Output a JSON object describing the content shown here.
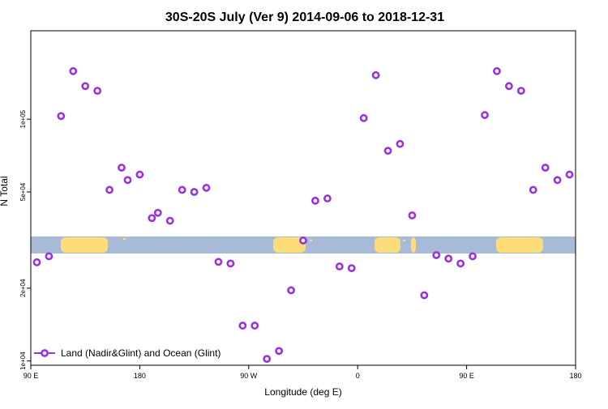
{
  "chart_data": {
    "type": "scatter",
    "title": "30S-20S July (Ver 9)   2014-09-06 to 2018-12-31",
    "xlabel": "Longitude (deg E)",
    "ylabel": "N Total",
    "x_ticks": [
      {
        "value": 0,
        "label": "90 E"
      },
      {
        "value": 90,
        "label": "180"
      },
      {
        "value": 180,
        "label": "90 W"
      },
      {
        "value": 270,
        "label": "0"
      },
      {
        "value": 360,
        "label": "90 E"
      },
      {
        "value": 450,
        "label": "180"
      }
    ],
    "xlim": [
      0,
      450
    ],
    "y_scale": "log",
    "ylim": [
      9600,
      232000
    ],
    "y_ticks": [
      {
        "value": 10000,
        "label": "1e+04"
      },
      {
        "value": 20000,
        "label": "2e+04"
      },
      {
        "value": 50000,
        "label": "5e+04"
      },
      {
        "value": 100000,
        "label": "1e+05"
      }
    ],
    "grid": false,
    "legend": {
      "position": "bottom-left",
      "entries": [
        {
          "label": "Land (Nadir&Glint) and Ocean (Glint)",
          "color": "#9b30e0"
        }
      ]
    },
    "colors": {
      "marker": "#9b30e0",
      "ocean": "#a7bbd8",
      "land": "#fedc7a"
    },
    "series": [
      {
        "name": "Land (Nadir&Glint) and Ocean (Glint)",
        "x": [
          5,
          15,
          25,
          35,
          45,
          55,
          65,
          75,
          80,
          90,
          100,
          105,
          115,
          125,
          135,
          145,
          155,
          165,
          175,
          185,
          195,
          205,
          215,
          225,
          235,
          245,
          255,
          265,
          275,
          285,
          295,
          305,
          315,
          325,
          335,
          345,
          355,
          365,
          375,
          385,
          395,
          405,
          415,
          425,
          435,
          445
        ],
        "y": [
          25600,
          27100,
          103000,
          158000,
          137000,
          131000,
          51000,
          63000,
          56000,
          59000,
          39000,
          41000,
          38000,
          51000,
          50000,
          52000,
          25700,
          25300,
          14000,
          14000,
          10200,
          11000,
          19600,
          31500,
          46000,
          47000,
          24600,
          24200,
          101000,
          152000,
          74000,
          79000,
          40000,
          18700,
          27400,
          26500,
          25300,
          27100,
          104000,
          158000,
          137000,
          131000,
          51000,
          63000,
          56000,
          59000
        ]
      }
    ]
  }
}
